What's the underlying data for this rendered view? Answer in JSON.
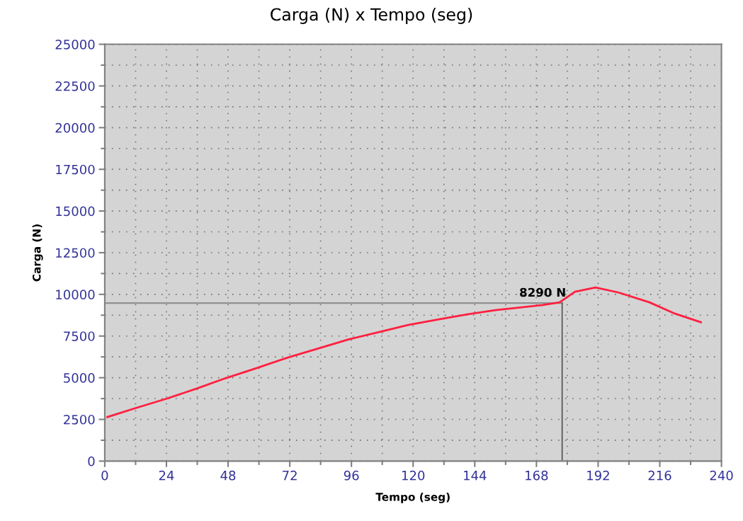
{
  "chart_data": {
    "type": "line",
    "title": "Carga (N) x Tempo (seg)",
    "xlabel": "Tempo (seg)",
    "ylabel": "Carga (N)",
    "x": [
      1,
      12,
      24,
      36,
      47,
      59,
      71,
      83,
      95,
      107,
      118,
      130,
      141,
      152,
      161,
      170,
      177,
      183,
      191,
      200,
      212,
      222,
      232
    ],
    "series": [
      {
        "color": "#ff2040",
        "values": [
          2640,
          3180,
          3740,
          4360,
          4970,
          5570,
          6200,
          6750,
          7300,
          7750,
          8160,
          8500,
          8800,
          9050,
          9200,
          9350,
          9520,
          10160,
          10410,
          10110,
          9520,
          8840,
          8330
        ]
      }
    ],
    "xlim": [
      0,
      240
    ],
    "xticks": [
      0,
      24,
      48,
      72,
      96,
      120,
      144,
      168,
      192,
      216,
      240
    ],
    "ylim": [
      0,
      25000
    ],
    "yticks": [
      0,
      2500,
      5000,
      7500,
      10000,
      12500,
      15000,
      17500,
      20000,
      22500,
      25000
    ],
    "grid": true,
    "marker": "none",
    "line_style": "solid",
    "ref_lines": [
      {
        "axis": "y",
        "value": 9480,
        "color": "#909090"
      },
      {
        "axis": "x",
        "value": 178,
        "color": "#505050"
      }
    ],
    "annotations": [
      {
        "text": "8290 N",
        "x": 178,
        "y": 9480
      }
    ]
  }
}
